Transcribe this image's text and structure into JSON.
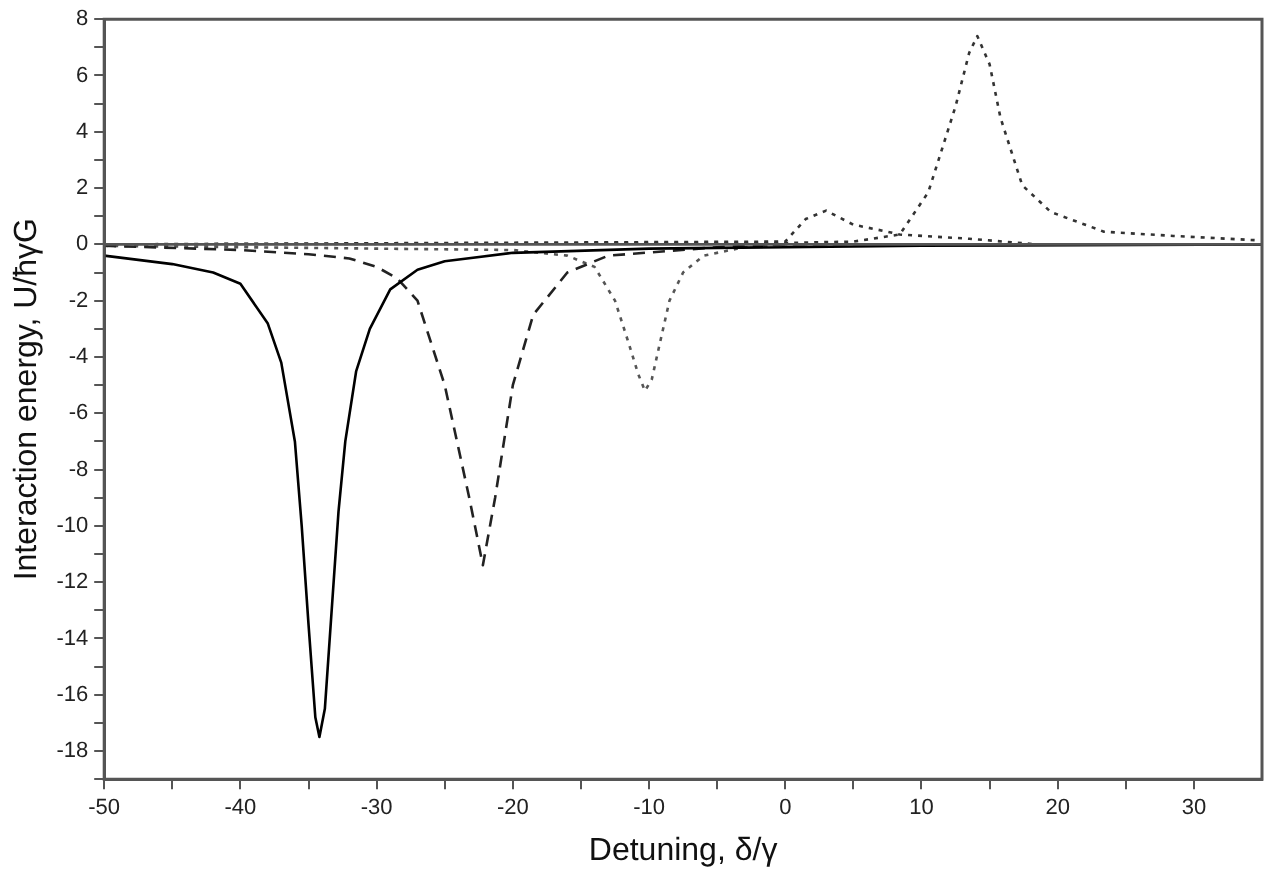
{
  "chart_data": {
    "type": "line",
    "xlabel": "Detuning, δ/γ",
    "ylabel": "Interaction energy, U/ħγG",
    "xlim": [
      -50,
      35
    ],
    "ylim": [
      -19,
      8
    ],
    "xticks": [
      -50,
      {
        "value": -45,
        "label": null
      },
      -40,
      {
        "value": -35,
        "label": null
      },
      -30,
      {
        "value": -25,
        "label": null
      },
      -20,
      {
        "value": -15,
        "label": null
      },
      -10,
      {
        "value": -5,
        "label": null
      },
      0,
      {
        "value": 5,
        "label": null
      },
      10,
      {
        "value": 15,
        "label": null
      },
      20,
      {
        "value": 25,
        "label": null
      },
      30
    ],
    "yticks": [
      {
        "value": -19,
        "label": null
      },
      -18,
      {
        "value": -17,
        "label": null
      },
      -16,
      {
        "value": -15,
        "label": null
      },
      -14,
      {
        "value": -13,
        "label": null
      },
      -12,
      {
        "value": -11,
        "label": null
      },
      -10,
      {
        "value": -9,
        "label": null
      },
      -8,
      {
        "value": -7,
        "label": null
      },
      -6,
      {
        "value": -5,
        "label": null
      },
      -4,
      {
        "value": -3,
        "label": null
      },
      -2,
      {
        "value": -1,
        "label": null
      },
      0,
      {
        "value": 1,
        "label": null
      },
      2,
      {
        "value": 3,
        "label": null
      },
      4,
      {
        "value": 5,
        "label": null
      },
      6,
      {
        "value": 7,
        "label": null
      },
      8
    ],
    "grid": false,
    "legend": false,
    "marker": "none",
    "ref_lines": [
      {
        "axis": "y",
        "value": 0,
        "color": "#555555"
      }
    ],
    "series": [
      {
        "color": "#000000",
        "line_style": "solid",
        "x": [
          -50,
          -45,
          -42,
          -40,
          -38,
          -37,
          -36,
          -35.5,
          -35,
          -34.5,
          -34.2,
          -33.8,
          -33.3,
          -32.8,
          -32.3,
          -31.5,
          -30.5,
          -29,
          -27,
          -25,
          -20,
          -10,
          0,
          10,
          35
        ],
        "values": [
          -0.4,
          -0.7,
          -1.0,
          -1.4,
          -2.8,
          -4.2,
          -7,
          -10,
          -13.5,
          -16.8,
          -17.5,
          -16.5,
          -13,
          -9.5,
          -7,
          -4.5,
          -3,
          -1.6,
          -0.9,
          -0.6,
          -0.3,
          -0.15,
          -0.1,
          -0.05,
          0
        ]
      },
      {
        "color": "#222222",
        "line_style": "dashed",
        "x": [
          -50,
          -40,
          -35,
          -32,
          -30,
          -28.5,
          -27,
          -25,
          -23.2,
          -22.2,
          -21.3,
          -20,
          -18.5,
          -16,
          -13,
          -5,
          0,
          35
        ],
        "values": [
          -0.05,
          -0.2,
          -0.35,
          -0.5,
          -0.8,
          -1.2,
          -2,
          -5,
          -9,
          -11.4,
          -9,
          -5,
          -2.5,
          -1,
          -0.4,
          -0.1,
          0,
          0
        ]
      },
      {
        "color": "#555555",
        "line_style": "dotted",
        "x": [
          -50,
          -20,
          -16,
          -14,
          -12.5,
          -11.5,
          -10.8,
          -10.3,
          -9.8,
          -9.2,
          -8.5,
          -7.5,
          -6,
          -3,
          0,
          35
        ],
        "values": [
          -0.05,
          -0.2,
          -0.4,
          -0.8,
          -2,
          -3.5,
          -4.6,
          -5.2,
          -4.8,
          -3.5,
          -2,
          -1,
          -0.4,
          -0.1,
          0,
          0
        ]
      },
      {
        "color": "#333333",
        "line_style": "dotted",
        "x": [
          -50,
          0,
          1.5,
          3,
          5,
          7.5,
          8.4,
          13.5,
          18.5,
          35
        ],
        "values": [
          0,
          0.1,
          0.9,
          1.2,
          0.7,
          0.45,
          0.35,
          0.2,
          0,
          0
        ]
      },
      {
        "color": "#333333",
        "line_style": "dotted",
        "x": [
          -50,
          0,
          5,
          8.4,
          10.5,
          12.5,
          13.5,
          14.1,
          15,
          15.8,
          17.4,
          19.5,
          23.4,
          28.5,
          34.5
        ],
        "values": [
          0,
          0.05,
          0.1,
          0.35,
          1.85,
          4.9,
          6.8,
          7.4,
          6.4,
          4.5,
          2.1,
          1.15,
          0.45,
          0.3,
          0.15
        ]
      }
    ]
  }
}
